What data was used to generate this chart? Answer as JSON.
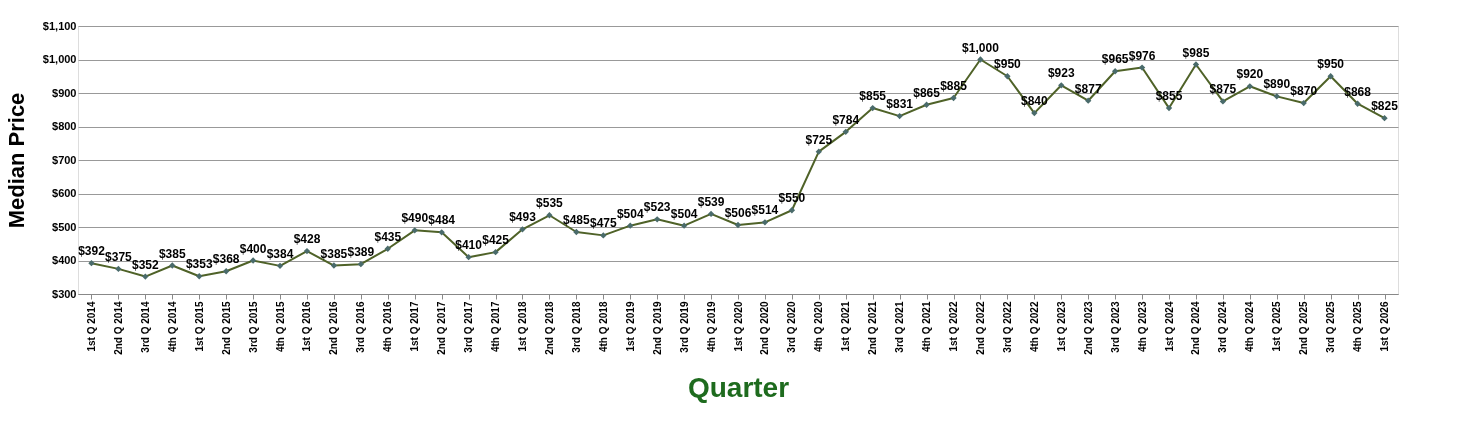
{
  "chart_data": {
    "type": "line",
    "xlabel": "Quarter",
    "ylabel": "Median Price",
    "categories": [
      "1st Q 2014",
      "2nd Q 2014",
      "3rd Q 2014",
      "4th Q 2014",
      "1st Q 2015",
      "2nd Q 2015",
      "3rd Q 2015",
      "4th Q 2015",
      "1st Q 2016",
      "2nd Q 2016",
      "3rd Q 2016",
      "4th Q 2016",
      "1st Q 2017",
      "2nd Q 2017",
      "3rd Q 2017",
      "4th Q 2017",
      "1st Q 2018",
      "2nd Q 2018",
      "3rd Q 2018",
      "4th Q 2018",
      "1st Q 2019",
      "2nd Q 2019",
      "3rd Q 2019",
      "4th Q 2019",
      "1st Q 2020",
      "2nd Q 2020",
      "3rd Q 2020",
      "4th Q 2020",
      "1st Q 2021",
      "2nd Q 2021",
      "3rd Q 2021",
      "4th Q 2021",
      "1st Q 2022",
      "2nd Q 2022",
      "3rd Q 2022",
      "4th Q 2022",
      "1st Q 2023",
      "2nd Q 2023",
      "3rd Q 2023",
      "4th Q 2023",
      "1st Q 2024",
      "2nd Q 2024",
      "3rd Q 2024",
      "4th Q 2024",
      "1st Q 2025",
      "2nd Q 2025",
      "3rd Q 2025",
      "4th Q 2025",
      "1st Q 2026"
    ],
    "series": [
      {
        "color": "#4f6228",
        "values": [
          392,
          375,
          352,
          385,
          353,
          368,
          400,
          384,
          428,
          385,
          389,
          435,
          490,
          484,
          410,
          425,
          493,
          535,
          485,
          475,
          504,
          523,
          504,
          539,
          506,
          514,
          550,
          725,
          784,
          855,
          831,
          865,
          885,
          1000,
          950,
          840,
          923,
          877,
          965,
          976,
          855,
          985,
          875,
          920,
          890,
          870,
          950,
          868,
          825
        ],
        "value_labels": [
          "$392",
          "$375",
          "$352",
          "$385",
          "$353",
          "$368",
          "$400",
          "$384",
          "$428",
          "$385",
          "$389",
          "$435",
          "$490",
          "$484",
          "$410",
          "$425",
          "$493",
          "$535",
          "$485",
          "$475",
          "$504",
          "$523",
          "$504",
          "$539",
          "$506",
          "$514",
          "$550",
          "$725",
          "$784",
          "$855",
          "$831",
          "$865",
          "$885",
          "$1,000",
          "$950",
          "$840",
          "$923",
          "$877",
          "$965",
          "$976",
          "$855",
          "$985",
          "$875",
          "$920",
          "$890",
          "$870",
          "$950",
          "$868",
          "$825"
        ]
      }
    ],
    "ylim": [
      300,
      1100
    ],
    "yticks": [
      {
        "value": 300,
        "label": "$300"
      },
      {
        "value": 400,
        "label": "$400"
      },
      {
        "value": 500,
        "label": "$500"
      },
      {
        "value": 600,
        "label": "$600"
      },
      {
        "value": 700,
        "label": "$700"
      },
      {
        "value": 800,
        "label": "$800"
      },
      {
        "value": 900,
        "label": "$900"
      },
      {
        "value": 1000,
        "label": "$1,000"
      },
      {
        "value": 1100,
        "label": "$1,100"
      }
    ],
    "grid": "y",
    "marker": "diamond",
    "line_style": "solid"
  }
}
